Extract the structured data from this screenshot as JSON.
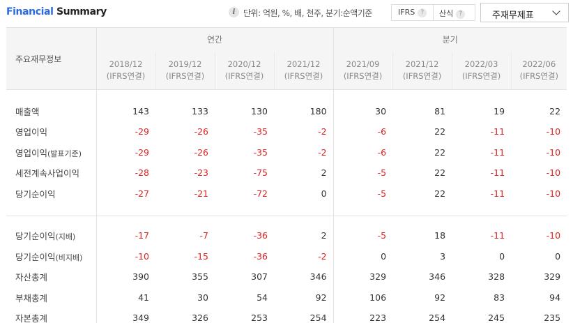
{
  "header": {
    "title_a": "Financial",
    "title_b": "Summary",
    "info_icon": "info-icon",
    "unit_text": "단위: 억원, %, 배, 천주, 분기:순액기준",
    "ifrs_label": "IFRS",
    "sansik_label": "산식",
    "help_icon_glyph": "?",
    "select_label": "주재무제표"
  },
  "table": {
    "row_header": "주요재무정보",
    "group_annual": "연간",
    "group_quarter": "분기",
    "periods": [
      {
        "date": "2018/12",
        "basis": "(IFRS연결)"
      },
      {
        "date": "2019/12",
        "basis": "(IFRS연결)"
      },
      {
        "date": "2020/12",
        "basis": "(IFRS연결)"
      },
      {
        "date": "2021/12",
        "basis": "(IFRS연결)"
      },
      {
        "date": "2021/09",
        "basis": "(IFRS연결)"
      },
      {
        "date": "2021/12",
        "basis": "(IFRS연결)"
      },
      {
        "date": "2022/03",
        "basis": "(IFRS연결)"
      },
      {
        "date": "2022/06",
        "basis": "(IFRS연결)"
      }
    ],
    "rows": [
      {
        "label": "매출액",
        "suffix": "",
        "values": [
          "143",
          "133",
          "130",
          "180",
          "30",
          "81",
          "19",
          "22"
        ]
      },
      {
        "label": "영업이익",
        "suffix": "",
        "values": [
          "-29",
          "-26",
          "-35",
          "-2",
          "-6",
          "22",
          "-11",
          "-10"
        ]
      },
      {
        "label": "영업이익",
        "suffix": "(발표기준)",
        "values": [
          "-29",
          "-26",
          "-35",
          "-2",
          "-6",
          "22",
          "-11",
          "-10"
        ]
      },
      {
        "label": "세전계속사업이익",
        "suffix": "",
        "values": [
          "-28",
          "-23",
          "-75",
          "2",
          "-5",
          "22",
          "-11",
          "-10"
        ]
      },
      {
        "label": "당기순이익",
        "suffix": "",
        "values": [
          "-27",
          "-21",
          "-72",
          "0",
          "-5",
          "22",
          "-11",
          "-10"
        ]
      },
      {
        "label": "당기순이익",
        "suffix": "(지배)",
        "values": [
          "-17",
          "-7",
          "-36",
          "2",
          "-5",
          "18",
          "-11",
          "-10"
        ]
      },
      {
        "label": "당기순이익",
        "suffix": "(비지배)",
        "values": [
          "-10",
          "-15",
          "-36",
          "-2",
          "0",
          "3",
          "0",
          "0"
        ]
      },
      {
        "label": "자산총계",
        "suffix": "",
        "values": [
          "390",
          "355",
          "307",
          "346",
          "329",
          "346",
          "328",
          "329"
        ]
      },
      {
        "label": "부채총계",
        "suffix": "",
        "values": [
          "41",
          "30",
          "54",
          "92",
          "106",
          "92",
          "83",
          "94"
        ]
      },
      {
        "label": "자본총계",
        "suffix": "",
        "values": [
          "349",
          "326",
          "253",
          "254",
          "223",
          "254",
          "245",
          "235"
        ]
      }
    ]
  },
  "colors": {
    "accent_blue": "#2b6ae0",
    "negative_red": "#e02020",
    "header_bg": "#f5f5f5"
  }
}
